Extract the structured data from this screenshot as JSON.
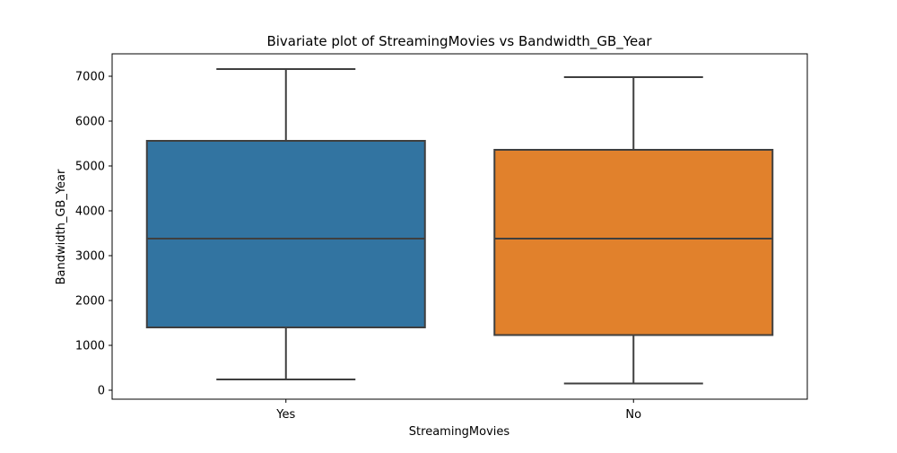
{
  "chart_data": {
    "type": "box",
    "title": "Bivariate plot of StreamingMovies vs Bandwidth_GB_Year",
    "xlabel": "StreamingMovies",
    "ylabel": "Bandwidth_GB_Year",
    "categories": [
      "Yes",
      "No"
    ],
    "boxes": [
      {
        "category": "Yes",
        "whisker_low": 240,
        "q1": 1400,
        "median": 3380,
        "q3": 5560,
        "whisker_high": 7160,
        "color": "#3274a1"
      },
      {
        "category": "No",
        "whisker_low": 150,
        "q1": 1230,
        "median": 3380,
        "q3": 5360,
        "whisker_high": 6980,
        "color": "#e1812c"
      }
    ],
    "yticks": [
      0,
      1000,
      2000,
      3000,
      4000,
      5000,
      6000,
      7000
    ],
    "ylim": [
      -200,
      7500
    ],
    "grid": false,
    "line_color": "#3f3f3f"
  }
}
